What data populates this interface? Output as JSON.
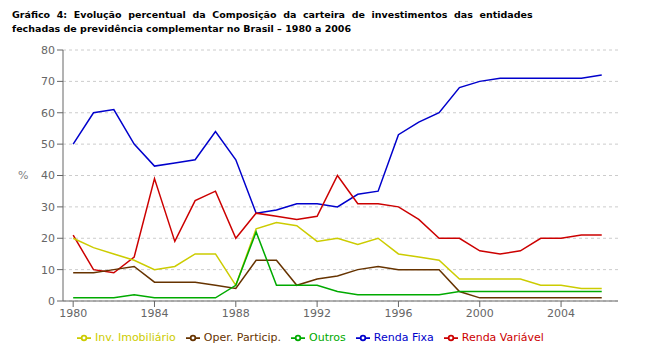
{
  "chart_data": {
    "type": "line",
    "title": "Gráfico  4:  Evolução  percentual  da  Composição  da  carteira  de  investimentos  das  entidades",
    "subtitle": "fechadas de previdência complementar no Brasil – 1980 a 2006",
    "ylabel": "%",
    "x": [
      1980,
      1981,
      1982,
      1983,
      1984,
      1985,
      1986,
      1987,
      1988,
      1989,
      1990,
      1991,
      1992,
      1993,
      1994,
      1995,
      1996,
      1997,
      1998,
      1999,
      2000,
      2001,
      2002,
      2003,
      2004,
      2005,
      2006
    ],
    "series": [
      {
        "name": "Renda Fixa",
        "color": "#0000cc",
        "values": [
          50,
          60,
          61,
          50,
          43,
          44,
          45,
          54,
          45,
          28,
          29,
          31,
          31,
          30,
          34,
          35,
          53,
          57,
          60,
          68,
          70,
          71,
          71,
          71,
          71,
          71,
          72
        ]
      },
      {
        "name": "Renda Variável",
        "color": "#cc0000",
        "values": [
          21,
          10,
          9,
          14,
          39,
          19,
          32,
          35,
          20,
          28,
          27,
          26,
          27,
          40,
          31,
          31,
          30,
          26,
          20,
          20,
          16,
          15,
          16,
          20,
          20,
          21,
          21
        ]
      },
      {
        "name": "Inv. Imobiliário",
        "color": "#cccc00",
        "values": [
          20,
          17,
          15,
          13,
          10,
          11,
          15,
          15,
          5,
          23,
          25,
          24,
          19,
          20,
          18,
          20,
          15,
          14,
          13,
          7,
          7,
          7,
          7,
          5,
          5,
          4,
          4
        ]
      },
      {
        "name": "Oper. Particip.",
        "color": "#663300",
        "values": [
          9,
          9,
          10,
          11,
          6,
          6,
          6,
          5,
          4,
          13,
          13,
          5,
          7,
          8,
          10,
          11,
          10,
          10,
          10,
          3,
          1,
          1,
          1,
          1,
          1,
          1,
          1
        ]
      },
      {
        "name": "Outros",
        "color": "#00aa00",
        "values": [
          1,
          1,
          1,
          2,
          1,
          1,
          1,
          1,
          5,
          22,
          5,
          5,
          5,
          3,
          2,
          2,
          2,
          2,
          2,
          3,
          3,
          3,
          3,
          3,
          3,
          3,
          3
        ]
      }
    ],
    "xlim": [
      1979.5,
      2006.8
    ],
    "xticks": [
      1980,
      1984,
      1988,
      1992,
      1996,
      2000,
      2004
    ],
    "ylim": [
      0,
      80
    ],
    "yticks": [
      0,
      10,
      20,
      30,
      40,
      50,
      60,
      70,
      80
    ],
    "grid": true,
    "legend": "bottom"
  }
}
